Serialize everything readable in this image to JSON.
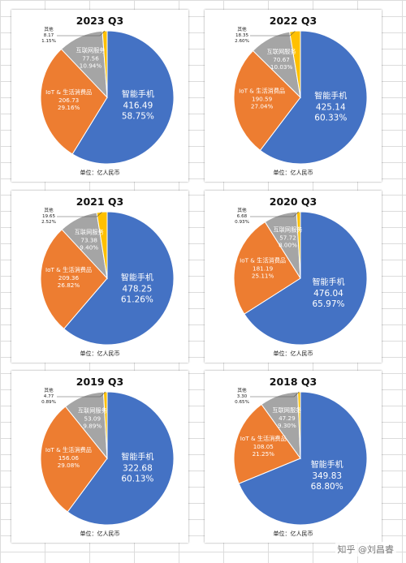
{
  "unit_label": "单位：亿人民币",
  "watermark": "知乎 @刘昌睿",
  "colors": {
    "smartphone": "#4472C4",
    "iot": "#ED7D31",
    "internet": "#A5A5A5",
    "other": "#FFC000"
  },
  "categories": [
    "智能手机",
    "IoT & 生活消费品",
    "互联网服务",
    "其他"
  ],
  "chart_data": [
    {
      "type": "pie",
      "title": "2023 Q3",
      "slices": [
        {
          "name": "智能手机",
          "value": 416.49,
          "percent": "58.75%"
        },
        {
          "name": "IoT & 生活消费品",
          "value": 206.73,
          "percent": "29.16%"
        },
        {
          "name": "互联网服务",
          "value": 77.56,
          "percent": "10.94%"
        },
        {
          "name": "其他",
          "value": 8.17,
          "percent": "1.15%"
        }
      ]
    },
    {
      "type": "pie",
      "title": "2022 Q3",
      "slices": [
        {
          "name": "智能手机",
          "value": 425.14,
          "percent": "60.33%"
        },
        {
          "name": "IoT & 生活消费品",
          "value": 190.59,
          "percent": "27.04%"
        },
        {
          "name": "互联网服务",
          "value": 70.67,
          "percent": "10.03%"
        },
        {
          "name": "其他",
          "value": 18.35,
          "percent": "2.60%"
        }
      ]
    },
    {
      "type": "pie",
      "title": "2021 Q3",
      "slices": [
        {
          "name": "智能手机",
          "value": 478.25,
          "percent": "61.26%"
        },
        {
          "name": "IoT & 生活消费品",
          "value": 209.36,
          "percent": "26.82%"
        },
        {
          "name": "互联网服务",
          "value": 73.38,
          "percent": "9.40%"
        },
        {
          "name": "其他",
          "value": 19.65,
          "percent": "2.52%"
        }
      ]
    },
    {
      "type": "pie",
      "title": "2020 Q3",
      "slices": [
        {
          "name": "智能手机",
          "value": 476.04,
          "percent": "65.97%"
        },
        {
          "name": "IoT & 生活消费品",
          "value": 181.19,
          "percent": "25.11%"
        },
        {
          "name": "互联网服务",
          "value": 57.72,
          "percent": "8.00%"
        },
        {
          "name": "其他",
          "value": 6.68,
          "percent": "0.93%"
        }
      ]
    },
    {
      "type": "pie",
      "title": "2019 Q3",
      "slices": [
        {
          "name": "智能手机",
          "value": 322.68,
          "percent": "60.13%"
        },
        {
          "name": "IoT & 生活消费品",
          "value": 156.06,
          "percent": "29.08%"
        },
        {
          "name": "互联网服务",
          "value": 53.09,
          "percent": "9.89%"
        },
        {
          "name": "其他",
          "value": 4.77,
          "percent": "0.89%"
        }
      ]
    },
    {
      "type": "pie",
      "title": "2018 Q3",
      "slices": [
        {
          "name": "智能手机",
          "value": 349.83,
          "percent": "68.80%"
        },
        {
          "name": "IoT & 生活消费品",
          "value": 108.05,
          "percent": "21.25%"
        },
        {
          "name": "互联网服务",
          "value": 47.29,
          "percent": "9.30%"
        },
        {
          "name": "其他",
          "value": 3.3,
          "percent": "0.65%"
        }
      ]
    }
  ]
}
